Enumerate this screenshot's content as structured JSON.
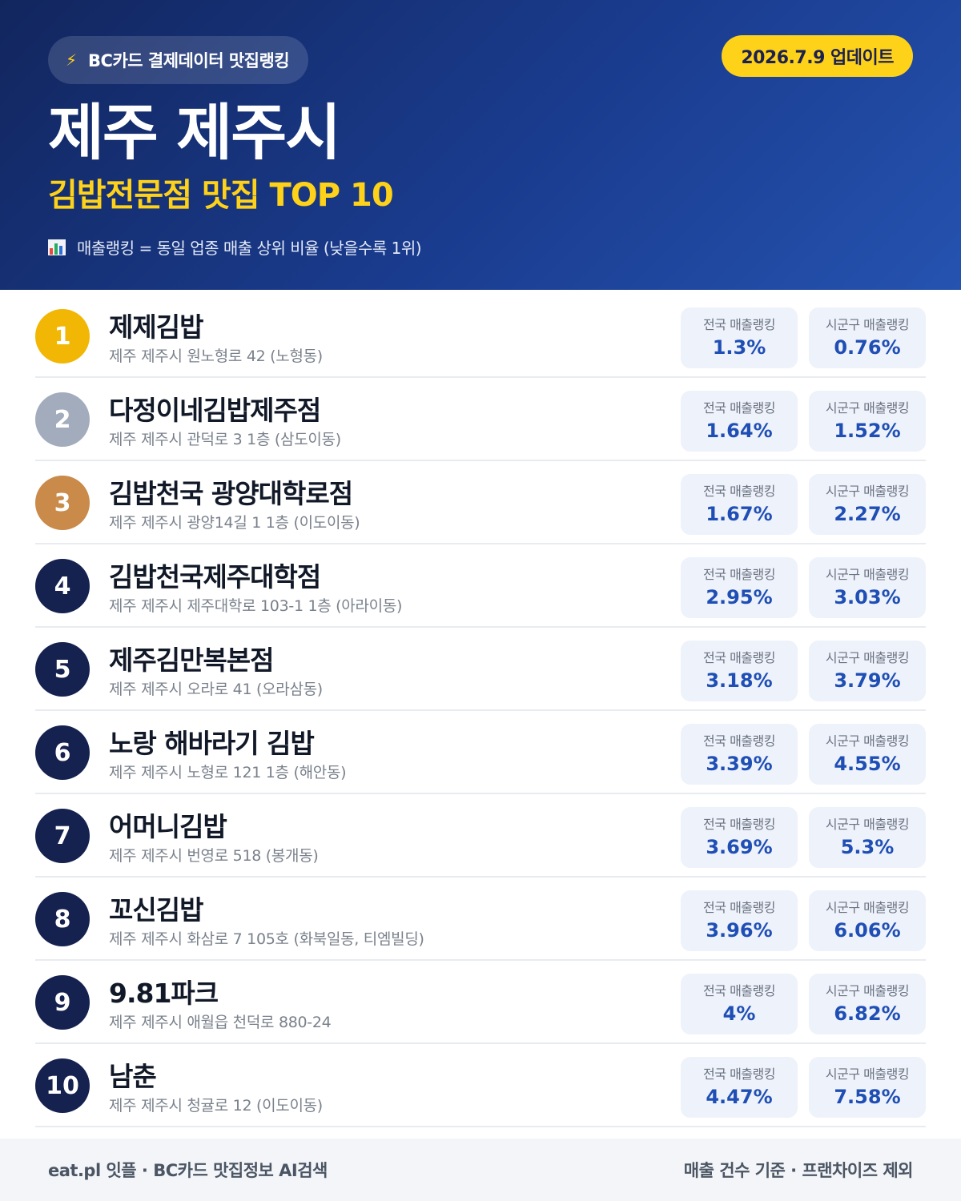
{
  "header": {
    "source_label": "BC카드 결제데이터 맛집랭킹",
    "bolt_icon": "lightning-icon",
    "date_badge": "2026.7.9 업데이트",
    "title": "제주 제주시",
    "subtitle": "김밥전문점 맛집 TOP 10",
    "note_icon": "bar-chart-icon",
    "note": "매출랭킹 = 동일 업종 매출 상위 비율 (낮을수록 1위)"
  },
  "colors": {
    "header_bg": "#1a3c8f",
    "accent_yellow": "#ffd21a",
    "gold": "#f2b705",
    "silver": "#a3acbd",
    "bronze": "#c98a4a",
    "navy": "#15214f",
    "value_blue": "#1f4fb5"
  },
  "stat_labels": {
    "national": "전국 매출랭킹",
    "local": "시군구 매출랭킹"
  },
  "restaurants": [
    {
      "rank": "1",
      "name": "제제김밥",
      "address": "제주 제주시 원노형로 42 (노형동)",
      "national": "1.3%",
      "local": "0.76%"
    },
    {
      "rank": "2",
      "name": "다정이네김밥제주점",
      "address": "제주 제주시 관덕로 3 1층 (삼도이동)",
      "national": "1.64%",
      "local": "1.52%"
    },
    {
      "rank": "3",
      "name": "김밥천국 광양대학로점",
      "address": "제주 제주시 광양14길 1 1층 (이도이동)",
      "national": "1.67%",
      "local": "2.27%"
    },
    {
      "rank": "4",
      "name": "김밥천국제주대학점",
      "address": "제주 제주시 제주대학로 103-1 1층 (아라이동)",
      "national": "2.95%",
      "local": "3.03%"
    },
    {
      "rank": "5",
      "name": "제주김만복본점",
      "address": "제주 제주시 오라로 41 (오라삼동)",
      "national": "3.18%",
      "local": "3.79%"
    },
    {
      "rank": "6",
      "name": "노랑 해바라기 김밥",
      "address": "제주 제주시 노형로 121 1층 (해안동)",
      "national": "3.39%",
      "local": "4.55%"
    },
    {
      "rank": "7",
      "name": "어머니김밥",
      "address": "제주 제주시 번영로 518 (봉개동)",
      "national": "3.69%",
      "local": "5.3%"
    },
    {
      "rank": "8",
      "name": "꼬신김밥",
      "address": "제주 제주시 화삼로 7 105호 (화북일동, 티엠빌딩)",
      "national": "3.96%",
      "local": "6.06%"
    },
    {
      "rank": "9",
      "name": "9.81파크",
      "address": "제주 제주시 애월읍 천덕로 880-24",
      "national": "4%",
      "local": "6.82%"
    },
    {
      "rank": "10",
      "name": "남춘",
      "address": "제주 제주시 청귤로 12 (이도이동)",
      "national": "4.47%",
      "local": "7.58%"
    }
  ],
  "footer": {
    "left": "eat.pl 잇플 · BC카드 맛집정보 AI검색",
    "right": "매출 건수 기준 · 프랜차이즈 제외"
  }
}
